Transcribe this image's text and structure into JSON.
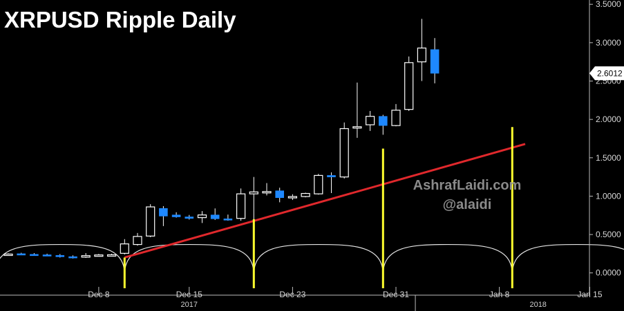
{
  "chart_data": {
    "type": "candlestick",
    "title": "XRPUSD  Ripple  Daily",
    "watermark": [
      "AshrafLaidi.com",
      "@alaidi"
    ],
    "last_price_label": "2.6012",
    "y_axis": {
      "side": "right",
      "ylim": [
        -0.2,
        3.52
      ],
      "ticks": [
        "3.5000",
        "3.0000",
        "2.5000",
        "2.0000",
        "1.5000",
        "1.0000",
        "0.5000",
        "0.0000"
      ],
      "tick_values": [
        3.5,
        3.0,
        2.5,
        2.0,
        1.5,
        1.0,
        0.5,
        0.0
      ]
    },
    "x_axis": {
      "day_range": [
        0,
        32
      ],
      "labels": [
        {
          "text": "Dec 8",
          "day": 7
        },
        {
          "text": "Dec 15",
          "day": 14
        },
        {
          "text": "Dec 23",
          "day": 22
        },
        {
          "text": "Dec 31",
          "day": 30
        },
        {
          "text": "Jan 8",
          "day": 38
        },
        {
          "text": "Jan 15",
          "day": 45
        }
      ],
      "years": [
        {
          "text": "2017",
          "day": 14
        },
        {
          "text": "2018",
          "day": 41
        }
      ]
    },
    "colors": {
      "background": "#000000",
      "bullish": "#ffffff",
      "bearish": "#1e88ff",
      "trendline": "#e0282c",
      "cycle_markers": "#ffff2e",
      "cycle_arcs": "#e6e6e6"
    },
    "candles": [
      {
        "open": 0.24,
        "close": 0.245,
        "high": 0.255,
        "low": 0.228
      },
      {
        "open": 0.25,
        "close": 0.24,
        "high": 0.262,
        "low": 0.232
      },
      {
        "open": 0.242,
        "close": 0.236,
        "high": 0.258,
        "low": 0.228
      },
      {
        "open": 0.236,
        "close": 0.228,
        "high": 0.25,
        "low": 0.22
      },
      {
        "open": 0.228,
        "close": 0.21,
        "high": 0.245,
        "low": 0.2
      },
      {
        "open": 0.212,
        "close": 0.2,
        "high": 0.228,
        "low": 0.188
      },
      {
        "open": 0.205,
        "close": 0.225,
        "high": 0.258,
        "low": 0.195
      },
      {
        "open": 0.228,
        "close": 0.234,
        "high": 0.248,
        "low": 0.222
      },
      {
        "open": 0.232,
        "close": 0.236,
        "high": 0.25,
        "low": 0.225
      },
      {
        "open": 0.255,
        "close": 0.378,
        "high": 0.44,
        "low": 0.24
      },
      {
        "open": 0.37,
        "close": 0.475,
        "high": 0.52,
        "low": 0.355
      },
      {
        "open": 0.48,
        "close": 0.86,
        "high": 0.895,
        "low": 0.465
      },
      {
        "open": 0.84,
        "close": 0.74,
        "high": 0.87,
        "low": 0.61
      },
      {
        "open": 0.755,
        "close": 0.73,
        "high": 0.79,
        "low": 0.72
      },
      {
        "open": 0.73,
        "close": 0.71,
        "high": 0.755,
        "low": 0.695
      },
      {
        "open": 0.72,
        "close": 0.755,
        "high": 0.805,
        "low": 0.65
      },
      {
        "open": 0.755,
        "close": 0.705,
        "high": 0.84,
        "low": 0.69
      },
      {
        "open": 0.705,
        "close": 0.7,
        "high": 0.76,
        "low": 0.68
      },
      {
        "open": 0.71,
        "close": 1.03,
        "high": 1.1,
        "low": 0.68
      },
      {
        "open": 1.03,
        "close": 1.055,
        "high": 1.25,
        "low": 0.68
      },
      {
        "open": 1.045,
        "close": 1.06,
        "high": 1.17,
        "low": 1.01
      },
      {
        "open": 1.07,
        "close": 0.98,
        "high": 1.11,
        "low": 0.92
      },
      {
        "open": 0.985,
        "close": 0.995,
        "high": 1.025,
        "low": 0.95
      },
      {
        "open": 0.995,
        "close": 1.035,
        "high": 1.045,
        "low": 0.985
      },
      {
        "open": 1.03,
        "close": 1.27,
        "high": 1.29,
        "low": 1.02
      },
      {
        "open": 1.27,
        "close": 1.25,
        "high": 1.31,
        "low": 1.04
      },
      {
        "open": 1.25,
        "close": 1.88,
        "high": 1.96,
        "low": 1.23
      },
      {
        "open": 1.89,
        "close": 1.905,
        "high": 2.48,
        "low": 1.76
      },
      {
        "open": 1.93,
        "close": 2.04,
        "high": 2.11,
        "low": 1.85
      },
      {
        "open": 2.04,
        "close": 1.92,
        "high": 2.06,
        "low": 1.8
      },
      {
        "open": 1.92,
        "close": 2.12,
        "high": 2.2,
        "low": 1.91
      },
      {
        "open": 2.13,
        "close": 2.74,
        "high": 2.82,
        "low": 2.11
      },
      {
        "open": 2.75,
        "close": 2.93,
        "high": 3.31,
        "low": 2.5
      },
      {
        "open": 2.91,
        "close": 2.601,
        "high": 3.06,
        "low": 2.47
      }
    ],
    "trendline": [
      {
        "day": 9,
        "value": 0.2
      },
      {
        "day": 40,
        "value": 1.68
      }
    ],
    "cycle_markers": [
      {
        "day": 9,
        "value": 0.2
      },
      {
        "day": 19,
        "value": 0.7
      },
      {
        "day": 29,
        "value": 1.62
      },
      {
        "day": 39,
        "value": 1.9
      }
    ],
    "cycle_arcs": {
      "lows": [
        -1,
        9,
        19,
        29,
        39,
        49
      ],
      "bottom_value": -0.02,
      "peak_value": 0.37
    }
  }
}
